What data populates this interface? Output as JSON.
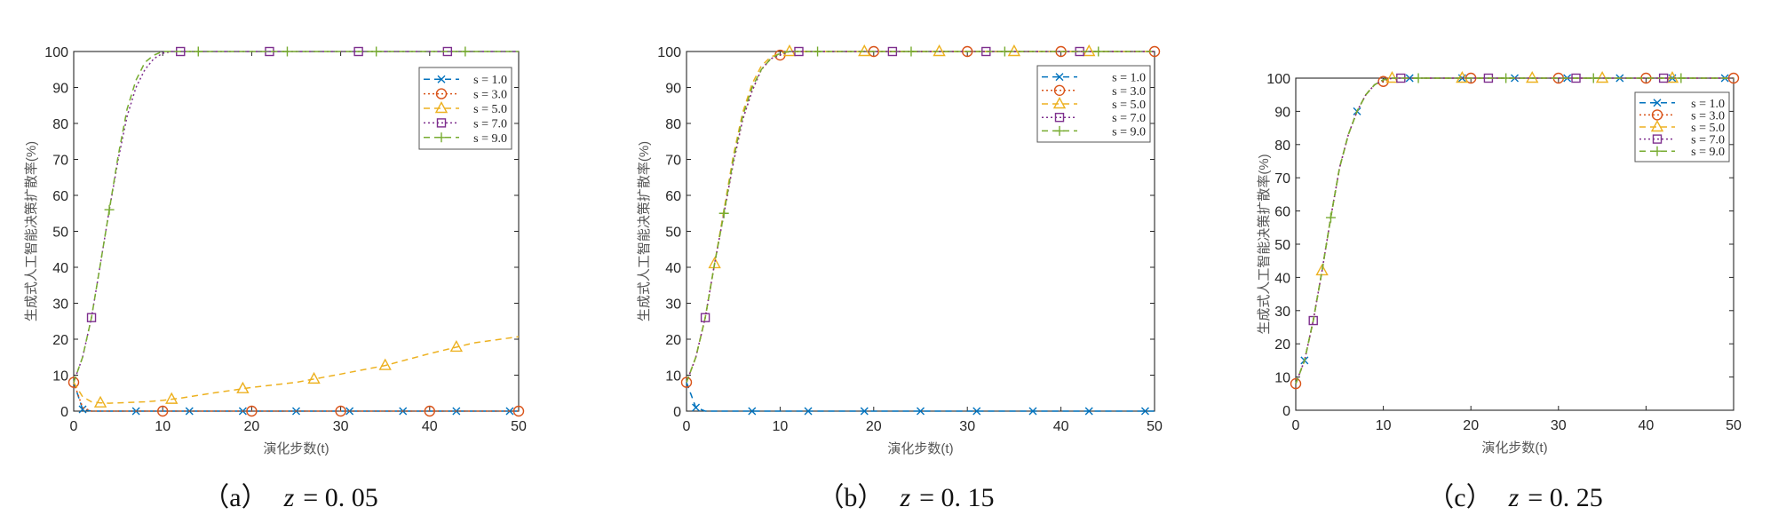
{
  "colors": {
    "s1": "#0072BD",
    "s3": "#D95319",
    "s5": "#EDB120",
    "s7": "#7E2F8E",
    "s9": "#77AC30"
  },
  "chart_data": [
    {
      "type": "line",
      "caption": {
        "label": "（a）",
        "var": "z",
        "value": "= 0. 05"
      },
      "xlabel": "演化步数(t)",
      "ylabel": "生成式人工智能决策扩散率(%)",
      "xlim": [
        0,
        50
      ],
      "ylim": [
        0,
        100
      ],
      "xticks": [
        "0",
        "10",
        "20",
        "30",
        "40",
        "50"
      ],
      "yticks": [
        "0",
        "10",
        "20",
        "30",
        "40",
        "50",
        "60",
        "70",
        "80",
        "90",
        "100"
      ],
      "legend_position": "top-right",
      "x": [
        0,
        1,
        2,
        3,
        4,
        5,
        6,
        7,
        8,
        9,
        10,
        11,
        12,
        15,
        20,
        25,
        30,
        35,
        40,
        45,
        50
      ],
      "series": [
        {
          "name": "s = 1.0",
          "key": "s1",
          "style": "dashed",
          "marker": "x",
          "marker_x": [
            1,
            7,
            13,
            19,
            25,
            31,
            37,
            43,
            49
          ],
          "values": [
            8,
            0.5,
            0,
            0,
            0,
            0,
            0,
            0,
            0,
            0,
            0,
            0,
            0,
            0,
            0,
            0,
            0,
            0,
            0,
            0,
            0
          ]
        },
        {
          "name": "s = 3.0",
          "key": "s3",
          "style": "dotted",
          "marker": "circle",
          "marker_x": [
            0,
            10,
            20,
            30,
            40,
            50
          ],
          "values": [
            8,
            1,
            0,
            0,
            0,
            0,
            0,
            0,
            0,
            0,
            0,
            0,
            0,
            0,
            0,
            0,
            0,
            0,
            0,
            0,
            0
          ]
        },
        {
          "name": "s = 5.0",
          "key": "s5",
          "style": "dashed",
          "marker": "triangle",
          "marker_x": [
            3,
            11,
            19,
            27,
            35,
            43
          ],
          "values": [
            8,
            4,
            2.6,
            2.3,
            2.2,
            2.3,
            2.4,
            2.5,
            2.6,
            2.8,
            3,
            3.3,
            3.6,
            4.8,
            6.6,
            8,
            10.3,
            12.7,
            16,
            19,
            20.7
          ]
        },
        {
          "name": "s = 7.0",
          "key": "s7",
          "style": "dotted",
          "marker": "square",
          "marker_x": [
            2,
            12,
            22,
            32,
            42
          ],
          "values": [
            8,
            15,
            26,
            41,
            56,
            70,
            82,
            90,
            95,
            98,
            99.5,
            100,
            100,
            100,
            100,
            100,
            100,
            100,
            100,
            100,
            100
          ]
        },
        {
          "name": "s = 9.0",
          "key": "s9",
          "style": "dashed",
          "marker": "plus",
          "marker_x": [
            4,
            14,
            24,
            34,
            44
          ],
          "values": [
            8,
            15,
            26,
            41,
            56,
            71,
            84,
            92,
            97,
            99,
            100,
            100,
            100,
            100,
            100,
            100,
            100,
            100,
            100,
            100,
            100
          ]
        }
      ]
    },
    {
      "type": "line",
      "caption": {
        "label": "（b）",
        "var": "z",
        "value": "= 0. 15"
      },
      "xlabel": "演化步数(t)",
      "ylabel": "生成式人工智能决策扩散率(%)",
      "xlim": [
        0,
        50
      ],
      "ylim": [
        0,
        100
      ],
      "xticks": [
        "0",
        "10",
        "20",
        "30",
        "40",
        "50"
      ],
      "yticks": [
        "0",
        "10",
        "20",
        "30",
        "40",
        "50",
        "60",
        "70",
        "80",
        "90",
        "100"
      ],
      "legend_position": "top-right",
      "x": [
        0,
        1,
        2,
        3,
        4,
        5,
        6,
        7,
        8,
        9,
        10,
        11,
        12,
        15,
        20,
        25,
        30,
        35,
        40,
        45,
        50
      ],
      "series": [
        {
          "name": "s = 1.0",
          "key": "s1",
          "style": "dashed",
          "marker": "x",
          "marker_x": [
            1,
            7,
            13,
            19,
            25,
            31,
            37,
            43,
            49
          ],
          "values": [
            8,
            1,
            0,
            0,
            0,
            0,
            0,
            0,
            0,
            0,
            0,
            0,
            0,
            0,
            0,
            0,
            0,
            0,
            0,
            0,
            0
          ]
        },
        {
          "name": "s = 3.0",
          "key": "s3",
          "style": "dotted",
          "marker": "circle",
          "marker_x": [
            0,
            10,
            20,
            30,
            40,
            50
          ],
          "values": [
            8,
            15,
            26,
            41,
            55,
            69,
            81,
            89,
            95,
            98,
            99,
            100,
            100,
            100,
            100,
            100,
            100,
            100,
            100,
            100,
            100
          ]
        },
        {
          "name": "s = 5.0",
          "key": "s5",
          "style": "dashed",
          "marker": "triangle",
          "marker_x": [
            3,
            11,
            19,
            27,
            35,
            43
          ],
          "values": [
            8,
            15,
            26,
            41,
            56,
            71,
            83,
            91,
            96,
            98.5,
            99.5,
            100,
            100,
            100,
            100,
            100,
            100,
            100,
            100,
            100,
            100
          ]
        },
        {
          "name": "s = 7.0",
          "key": "s7",
          "style": "dotted",
          "marker": "square",
          "marker_x": [
            2,
            12,
            22,
            32,
            42
          ],
          "values": [
            8,
            15,
            26,
            41,
            55,
            69,
            81,
            89,
            95,
            98,
            99,
            100,
            100,
            100,
            100,
            100,
            100,
            100,
            100,
            100,
            100
          ]
        },
        {
          "name": "s = 9.0",
          "key": "s9",
          "style": "dashed",
          "marker": "plus",
          "marker_x": [
            4,
            14,
            24,
            34,
            44
          ],
          "values": [
            8,
            15,
            26,
            41,
            55,
            70,
            82,
            90,
            95,
            98,
            99.5,
            100,
            100,
            100,
            100,
            100,
            100,
            100,
            100,
            100,
            100
          ]
        }
      ]
    },
    {
      "type": "line",
      "caption": {
        "label": "（c）",
        "var": "z",
        "value": "= 0. 25"
      },
      "xlabel": "演化步数(t)",
      "ylabel": "生成式人工智能决策扩散率(%)",
      "xlim": [
        0,
        50
      ],
      "ylim": [
        0,
        100
      ],
      "xticks": [
        "0",
        "10",
        "20",
        "30",
        "40",
        "50"
      ],
      "yticks": [
        "0",
        "10",
        "20",
        "30",
        "40",
        "50",
        "60",
        "70",
        "80",
        "90",
        "100"
      ],
      "legend_position": "top-right",
      "x": [
        0,
        1,
        2,
        3,
        4,
        5,
        6,
        7,
        8,
        9,
        10,
        11,
        12,
        15,
        20,
        25,
        30,
        35,
        40,
        45,
        50
      ],
      "series": [
        {
          "name": "s = 1.0",
          "key": "s1",
          "style": "dashed",
          "marker": "x",
          "marker_x": [
            1,
            7,
            13,
            19,
            25,
            31,
            37,
            43,
            49
          ],
          "values": [
            8,
            15,
            27,
            42,
            58,
            73,
            83,
            90,
            95,
            98,
            99.5,
            100,
            100,
            100,
            100,
            100,
            100,
            100,
            100,
            100,
            100
          ]
        },
        {
          "name": "s = 3.0",
          "key": "s3",
          "style": "dotted",
          "marker": "circle",
          "marker_x": [
            0,
            10,
            20,
            30,
            40,
            50
          ],
          "values": [
            8,
            15,
            27,
            42,
            58,
            73,
            83,
            90,
            95,
            98,
            99,
            100,
            100,
            100,
            100,
            100,
            100,
            100,
            100,
            100,
            100
          ]
        },
        {
          "name": "s = 5.0",
          "key": "s5",
          "style": "dashed",
          "marker": "triangle",
          "marker_x": [
            3,
            11,
            19,
            27,
            35,
            43
          ],
          "values": [
            8,
            15,
            27,
            42,
            58,
            73,
            83,
            90,
            95,
            98,
            99.5,
            100,
            100,
            100,
            100,
            100,
            100,
            100,
            100,
            100,
            100
          ]
        },
        {
          "name": "s = 7.0",
          "key": "s7",
          "style": "dotted",
          "marker": "square",
          "marker_x": [
            2,
            12,
            22,
            32,
            42
          ],
          "values": [
            8,
            15,
            27,
            42,
            58,
            73,
            83,
            90,
            95,
            98,
            99.5,
            100,
            100,
            100,
            100,
            100,
            100,
            100,
            100,
            100,
            100
          ]
        },
        {
          "name": "s = 9.0",
          "key": "s9",
          "style": "dashed",
          "marker": "plus",
          "marker_x": [
            4,
            14,
            24,
            34,
            44
          ],
          "values": [
            8,
            15,
            27,
            42,
            58,
            73,
            83,
            90,
            95,
            98,
            99.5,
            100,
            100,
            100,
            100,
            100,
            100,
            100,
            100,
            100,
            100
          ]
        }
      ]
    }
  ]
}
